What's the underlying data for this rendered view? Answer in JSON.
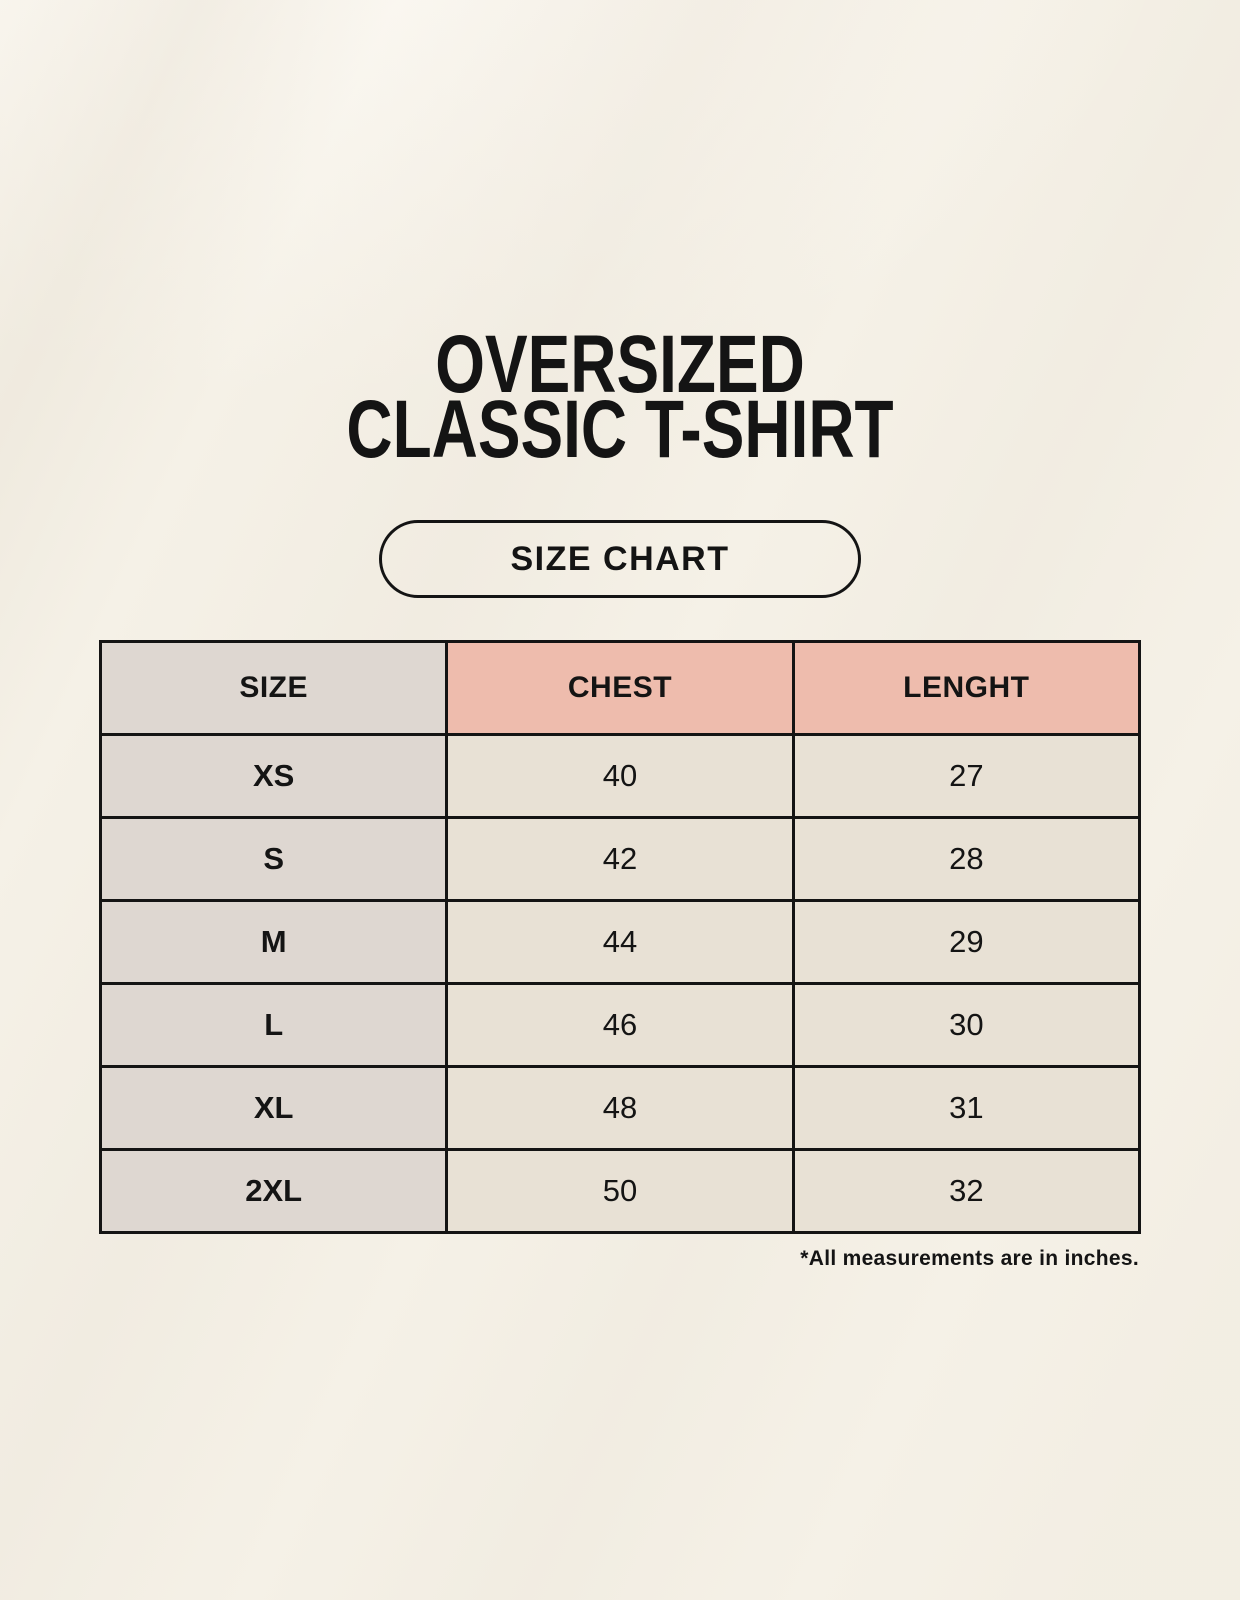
{
  "header": {
    "title_line1": "OVERSIZED",
    "title_line2": "CLASSIC T-SHIRT",
    "badge_label": "SIZE CHART"
  },
  "table": {
    "columns": [
      "SIZE",
      "CHEST",
      "LENGHT"
    ],
    "rows": [
      [
        "XS",
        "40",
        "27"
      ],
      [
        "S",
        "42",
        "28"
      ],
      [
        "M",
        "44",
        "29"
      ],
      [
        "L",
        "46",
        "30"
      ],
      [
        "XL",
        "48",
        "31"
      ],
      [
        "2XL",
        "50",
        "32"
      ]
    ],
    "units_note": "*All measurements are in inches."
  },
  "colors": {
    "page_bg": "#f5f1e7",
    "gray": "#ded7d1",
    "salmon": "#eebcad",
    "cream": "#e8e1d5",
    "border": "#141414",
    "text": "#141414"
  }
}
